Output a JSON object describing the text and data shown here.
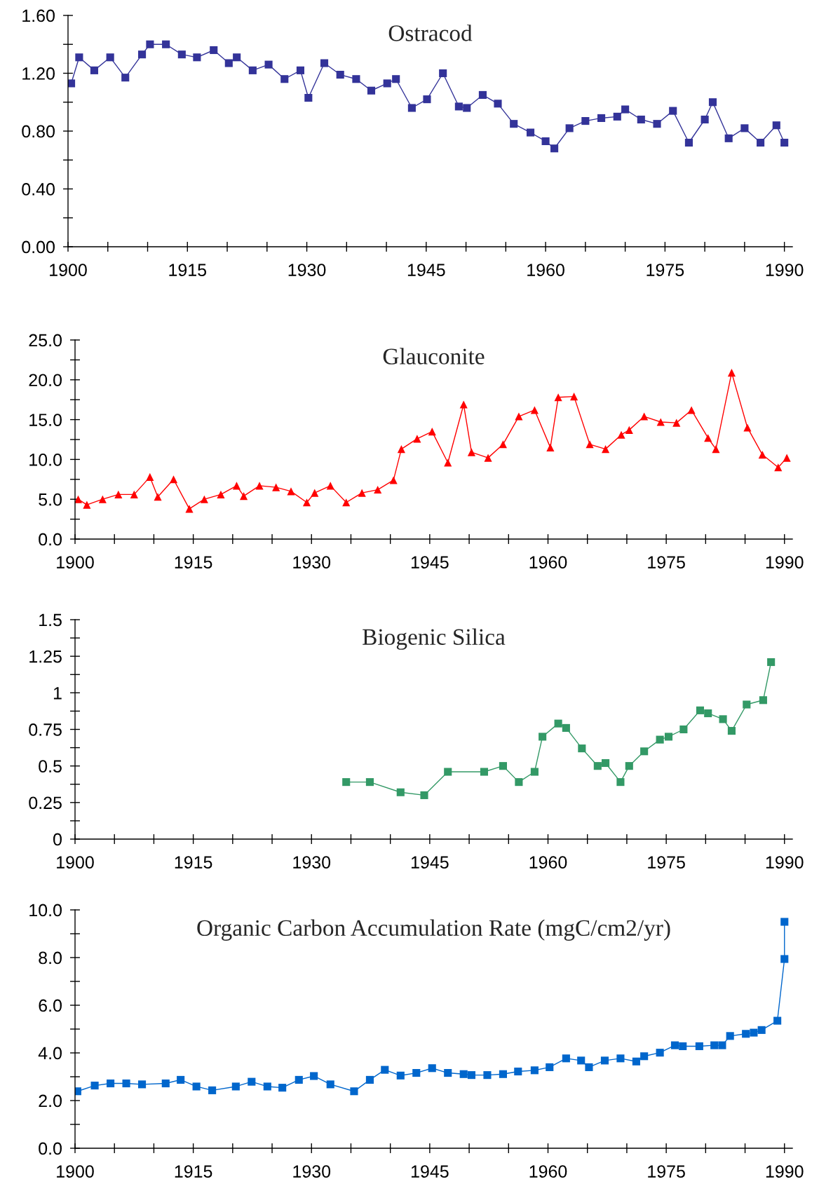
{
  "chart_data": [
    {
      "type": "line",
      "title": "Ostracod",
      "marker": "square",
      "grid": false,
      "legend": false,
      "x": [
        1900.4,
        1901.4,
        1903.3,
        1905.3,
        1907.2,
        1909.3,
        1910.3,
        1912.3,
        1914.3,
        1916.2,
        1918.3,
        1920.2,
        1921.2,
        1923.2,
        1925.2,
        1927.2,
        1929.2,
        1930.2,
        1932.2,
        1934.2,
        1936.2,
        1938.1,
        1940.1,
        1941.2,
        1943.2,
        1945.1,
        1947.1,
        1949.1,
        1950.1,
        1952.1,
        1954.0,
        1956.0,
        1958.1,
        1960.0,
        1961.1,
        1963.0,
        1965.0,
        1967.0,
        1969.0,
        1970.0,
        1972.0,
        1974.0,
        1976.0,
        1978.0,
        1980.0,
        1981.0,
        1983.0,
        1985.0,
        1987.0,
        1989.0,
        1990.0
      ],
      "series": [
        {
          "color": "#333399",
          "values": [
            1.13,
            1.31,
            1.22,
            1.31,
            1.17,
            1.33,
            1.4,
            1.4,
            1.33,
            1.31,
            1.36,
            1.27,
            1.31,
            1.22,
            1.26,
            1.16,
            1.22,
            1.03,
            1.27,
            1.19,
            1.16,
            1.08,
            1.13,
            1.16,
            0.96,
            1.02,
            1.2,
            0.97,
            0.96,
            1.05,
            0.99,
            0.85,
            0.79,
            0.73,
            0.68,
            0.82,
            0.87,
            0.89,
            0.9,
            0.95,
            0.88,
            0.85,
            0.94,
            0.72,
            0.88,
            1.0,
            0.75,
            0.82,
            0.72,
            0.84,
            0.72
          ]
        }
      ],
      "xlim": [
        1900,
        1991
      ],
      "xticks": [
        1900,
        {
          "value": 1905,
          "label": null
        },
        {
          "value": 1910,
          "label": null
        },
        1915,
        {
          "value": 1920,
          "label": null
        },
        {
          "value": 1925,
          "label": null
        },
        1930,
        {
          "value": 1935,
          "label": null
        },
        {
          "value": 1940,
          "label": null
        },
        1945,
        {
          "value": 1950,
          "label": null
        },
        {
          "value": 1955,
          "label": null
        },
        1960,
        {
          "value": 1965,
          "label": null
        },
        {
          "value": 1970,
          "label": null
        },
        1975,
        {
          "value": 1980,
          "label": null
        },
        {
          "value": 1985,
          "label": null
        },
        1990
      ],
      "ylim": [
        0,
        1.6
      ],
      "yticks": [
        {
          "value": 0,
          "label": "0.00"
        },
        {
          "value": 0.2,
          "label": null
        },
        {
          "value": 0.4,
          "label": "0.40"
        },
        {
          "value": 0.6,
          "label": null
        },
        {
          "value": 0.8,
          "label": "0.80"
        },
        {
          "value": 1.0,
          "label": null
        },
        {
          "value": 1.2,
          "label": "1.20"
        },
        {
          "value": 1.4,
          "label": null
        },
        {
          "value": 1.6,
          "label": "1.60"
        }
      ]
    },
    {
      "type": "line",
      "title": "Glauconite",
      "marker": "triangle",
      "grid": false,
      "legend": false,
      "x": [
        1900.4,
        1901.5,
        1903.5,
        1905.5,
        1907.5,
        1909.5,
        1910.5,
        1912.5,
        1914.5,
        1916.4,
        1918.5,
        1920.5,
        1921.4,
        1923.4,
        1925.5,
        1927.4,
        1929.4,
        1930.4,
        1932.4,
        1934.4,
        1936.4,
        1938.4,
        1940.4,
        1941.4,
        1943.4,
        1945.3,
        1947.3,
        1949.3,
        1950.3,
        1952.4,
        1954.3,
        1956.3,
        1958.3,
        1960.3,
        1961.3,
        1963.3,
        1965.3,
        1967.3,
        1969.3,
        1970.3,
        1972.2,
        1974.3,
        1976.3,
        1978.2,
        1980.3,
        1981.3,
        1983.3,
        1985.3,
        1987.2,
        1989.2,
        1990.3
      ],
      "series": [
        {
          "color": "#ff0000",
          "values": [
            5.0,
            4.3,
            5.0,
            5.6,
            5.6,
            7.8,
            5.3,
            7.5,
            3.8,
            5.0,
            5.6,
            6.7,
            5.4,
            6.7,
            6.5,
            6.0,
            4.6,
            5.8,
            6.7,
            4.6,
            5.8,
            6.2,
            7.4,
            11.3,
            12.6,
            13.5,
            9.6,
            16.9,
            10.9,
            10.2,
            11.9,
            15.4,
            16.2,
            11.5,
            17.8,
            17.9,
            11.9,
            11.3,
            13.1,
            13.7,
            15.4,
            14.7,
            14.6,
            16.2,
            12.7,
            11.3,
            20.9,
            14.0,
            10.6,
            9.0,
            10.2
          ]
        }
      ],
      "xlim": [
        1900,
        1991
      ],
      "xticks": [
        1900,
        {
          "value": 1905,
          "label": null
        },
        {
          "value": 1910,
          "label": null
        },
        1915,
        {
          "value": 1920,
          "label": null
        },
        {
          "value": 1925,
          "label": null
        },
        1930,
        {
          "value": 1935,
          "label": null
        },
        {
          "value": 1940,
          "label": null
        },
        1945,
        {
          "value": 1950,
          "label": null
        },
        {
          "value": 1955,
          "label": null
        },
        1960,
        {
          "value": 1965,
          "label": null
        },
        {
          "value": 1970,
          "label": null
        },
        1975,
        {
          "value": 1980,
          "label": null
        },
        {
          "value": 1985,
          "label": null
        },
        1990
      ],
      "ylim": [
        0,
        25
      ],
      "yticks": [
        {
          "value": 0,
          "label": "0.0"
        },
        {
          "value": 2.5,
          "label": null
        },
        {
          "value": 5,
          "label": "5.0"
        },
        {
          "value": 7.5,
          "label": null
        },
        {
          "value": 10,
          "label": "10.0"
        },
        {
          "value": 12.5,
          "label": null
        },
        {
          "value": 15,
          "label": "15.0"
        },
        {
          "value": 17.5,
          "label": null
        },
        {
          "value": 20,
          "label": "20.0"
        },
        {
          "value": 22.5,
          "label": null
        },
        {
          "value": 25,
          "label": "25.0"
        }
      ]
    },
    {
      "type": "line",
      "title": "Biogenic Silica",
      "marker": "square",
      "grid": false,
      "legend": false,
      "x": [
        1934.4,
        1937.4,
        1941.3,
        1944.3,
        1947.3,
        1951.9,
        1954.3,
        1956.3,
        1958.3,
        1959.3,
        1961.3,
        1962.3,
        1964.3,
        1966.3,
        1967.3,
        1969.2,
        1970.3,
        1972.2,
        1974.2,
        1975.3,
        1977.2,
        1979.3,
        1980.3,
        1982.2,
        1983.3,
        1985.2,
        1987.3,
        1988.3
      ],
      "series": [
        {
          "color": "#339966",
          "values": [
            0.39,
            0.39,
            0.32,
            0.3,
            0.46,
            0.46,
            0.5,
            0.39,
            0.46,
            0.7,
            0.79,
            0.76,
            0.62,
            0.5,
            0.52,
            0.39,
            0.5,
            0.6,
            0.68,
            0.7,
            0.75,
            0.88,
            0.86,
            0.82,
            0.74,
            0.92,
            0.95,
            1.21
          ]
        }
      ],
      "xlim": [
        1900,
        1991
      ],
      "xticks": [
        1900,
        {
          "value": 1905,
          "label": null
        },
        {
          "value": 1910,
          "label": null
        },
        1915,
        {
          "value": 1920,
          "label": null
        },
        {
          "value": 1925,
          "label": null
        },
        1930,
        {
          "value": 1935,
          "label": null
        },
        {
          "value": 1940,
          "label": null
        },
        1945,
        {
          "value": 1950,
          "label": null
        },
        {
          "value": 1955,
          "label": null
        },
        1960,
        {
          "value": 1965,
          "label": null
        },
        {
          "value": 1970,
          "label": null
        },
        1975,
        {
          "value": 1980,
          "label": null
        },
        {
          "value": 1985,
          "label": null
        },
        1990
      ],
      "ylim": [
        0,
        1.5
      ],
      "yticks": [
        0,
        {
          "value": 0.125,
          "label": null
        },
        0.25,
        {
          "value": 0.375,
          "label": null
        },
        0.5,
        {
          "value": 0.625,
          "label": null
        },
        0.75,
        {
          "value": 0.875,
          "label": null
        },
        1,
        {
          "value": 1.125,
          "label": null
        },
        1.25,
        {
          "value": 1.375,
          "label": null
        },
        1.5
      ]
    },
    {
      "type": "line",
      "title": "Organic Carbon Accumulation Rate (mgC/cm2/yr)",
      "marker": "square",
      "grid": false,
      "legend": false,
      "x": [
        1900.3,
        1902.5,
        1904.5,
        1906.5,
        1908.5,
        1911.5,
        1913.4,
        1915.4,
        1917.4,
        1920.4,
        1922.4,
        1924.4,
        1926.3,
        1928.4,
        1930.3,
        1932.4,
        1935.4,
        1937.4,
        1939.3,
        1941.3,
        1943.3,
        1945.3,
        1947.3,
        1949.3,
        1950.3,
        1952.3,
        1954.3,
        1956.2,
        1958.3,
        1960.2,
        1962.3,
        1964.2,
        1965.2,
        1967.2,
        1969.2,
        1971.2,
        1972.2,
        1974.2,
        1976.1,
        1977.1,
        1979.2,
        1981.1,
        1982.1,
        1983.1,
        1985.1,
        1986.1,
        1987.1,
        1989.1,
        1990.0,
        1990.0
      ],
      "series": [
        {
          "color": "#0066cc",
          "values": [
            2.39,
            2.63,
            2.72,
            2.72,
            2.68,
            2.72,
            2.87,
            2.59,
            2.43,
            2.59,
            2.79,
            2.59,
            2.54,
            2.87,
            3.03,
            2.68,
            2.39,
            2.87,
            3.29,
            3.05,
            3.16,
            3.36,
            3.16,
            3.11,
            3.07,
            3.07,
            3.11,
            3.22,
            3.27,
            3.4,
            3.77,
            3.68,
            3.4,
            3.68,
            3.77,
            3.64,
            3.86,
            4.01,
            4.32,
            4.28,
            4.28,
            4.32,
            4.32,
            4.71,
            4.8,
            4.85,
            4.96,
            5.35,
            7.94,
            9.5
          ]
        }
      ],
      "xlim": [
        1900,
        1991
      ],
      "xticks": [
        1900,
        {
          "value": 1905,
          "label": null
        },
        {
          "value": 1910,
          "label": null
        },
        1915,
        {
          "value": 1920,
          "label": null
        },
        {
          "value": 1925,
          "label": null
        },
        1930,
        {
          "value": 1935,
          "label": null
        },
        {
          "value": 1940,
          "label": null
        },
        1945,
        {
          "value": 1950,
          "label": null
        },
        {
          "value": 1955,
          "label": null
        },
        1960,
        {
          "value": 1965,
          "label": null
        },
        {
          "value": 1970,
          "label": null
        },
        1975,
        {
          "value": 1980,
          "label": null
        },
        {
          "value": 1985,
          "label": null
        },
        1990
      ],
      "ylim": [
        0,
        10
      ],
      "yticks": [
        {
          "value": 0,
          "label": "0.0"
        },
        {
          "value": 1,
          "label": null
        },
        {
          "value": 2,
          "label": "2.0"
        },
        {
          "value": 3,
          "label": null
        },
        {
          "value": 4,
          "label": "4.0"
        },
        {
          "value": 5,
          "label": null
        },
        {
          "value": 6,
          "label": "6.0"
        },
        {
          "value": 7,
          "label": null
        },
        {
          "value": 8,
          "label": "8.0"
        },
        {
          "value": 9,
          "label": null
        },
        {
          "value": 10,
          "label": "10.0"
        }
      ]
    }
  ]
}
